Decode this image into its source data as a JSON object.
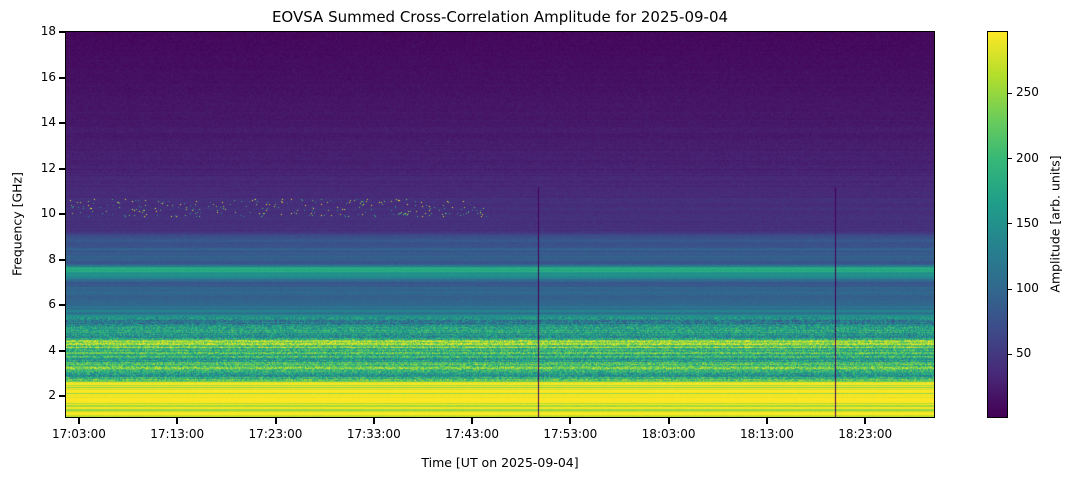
{
  "chart_data": {
    "type": "heatmap",
    "title": "EOVSA Summed Cross-Correlation Amplitude for 2025-09-04",
    "xlabel": "Time [UT on 2025-09-04]",
    "ylabel": "Frequency [GHz]",
    "colorbar_label": "Amplitude [arb. units]",
    "colormap": "viridis",
    "xlim": [
      "17:01:41",
      "18:30:00"
    ],
    "ylim": [
      1.08,
      18
    ],
    "clim": [
      2,
      297
    ],
    "xticks": [
      "17:03:00",
      "17:13:00",
      "17:23:00",
      "17:33:00",
      "17:43:00",
      "17:53:00",
      "18:03:00",
      "18:13:00",
      "18:23:00"
    ],
    "yticks": [
      2,
      4,
      6,
      8,
      10,
      12,
      14,
      16,
      18
    ],
    "colorbar_ticks": [
      50,
      100,
      150,
      200,
      250
    ],
    "frequency_profile": [
      [
        1.1,
        295
      ],
      [
        2.0,
        290
      ],
      [
        2.6,
        280
      ],
      [
        2.8,
        200
      ],
      [
        3.0,
        150
      ],
      [
        3.3,
        230
      ],
      [
        3.6,
        170
      ],
      [
        4.0,
        210
      ],
      [
        4.4,
        250
      ],
      [
        4.6,
        150
      ],
      [
        5.0,
        170
      ],
      [
        5.2,
        120
      ],
      [
        5.5,
        140
      ],
      [
        6.0,
        95
      ],
      [
        7.0,
        90
      ],
      [
        7.6,
        200
      ],
      [
        7.8,
        85
      ],
      [
        8.5,
        90
      ],
      [
        9.0,
        75
      ],
      [
        9.2,
        45
      ],
      [
        10.5,
        40
      ],
      [
        12,
        30
      ],
      [
        14,
        22
      ],
      [
        16,
        15
      ],
      [
        18,
        8
      ]
    ],
    "rfi_burst": {
      "freq_range": [
        9.9,
        10.7
      ],
      "time_range": [
        "17:02:00",
        "17:45:00"
      ]
    },
    "data_gaps": [
      "17:49:42",
      "18:19:54"
    ]
  }
}
